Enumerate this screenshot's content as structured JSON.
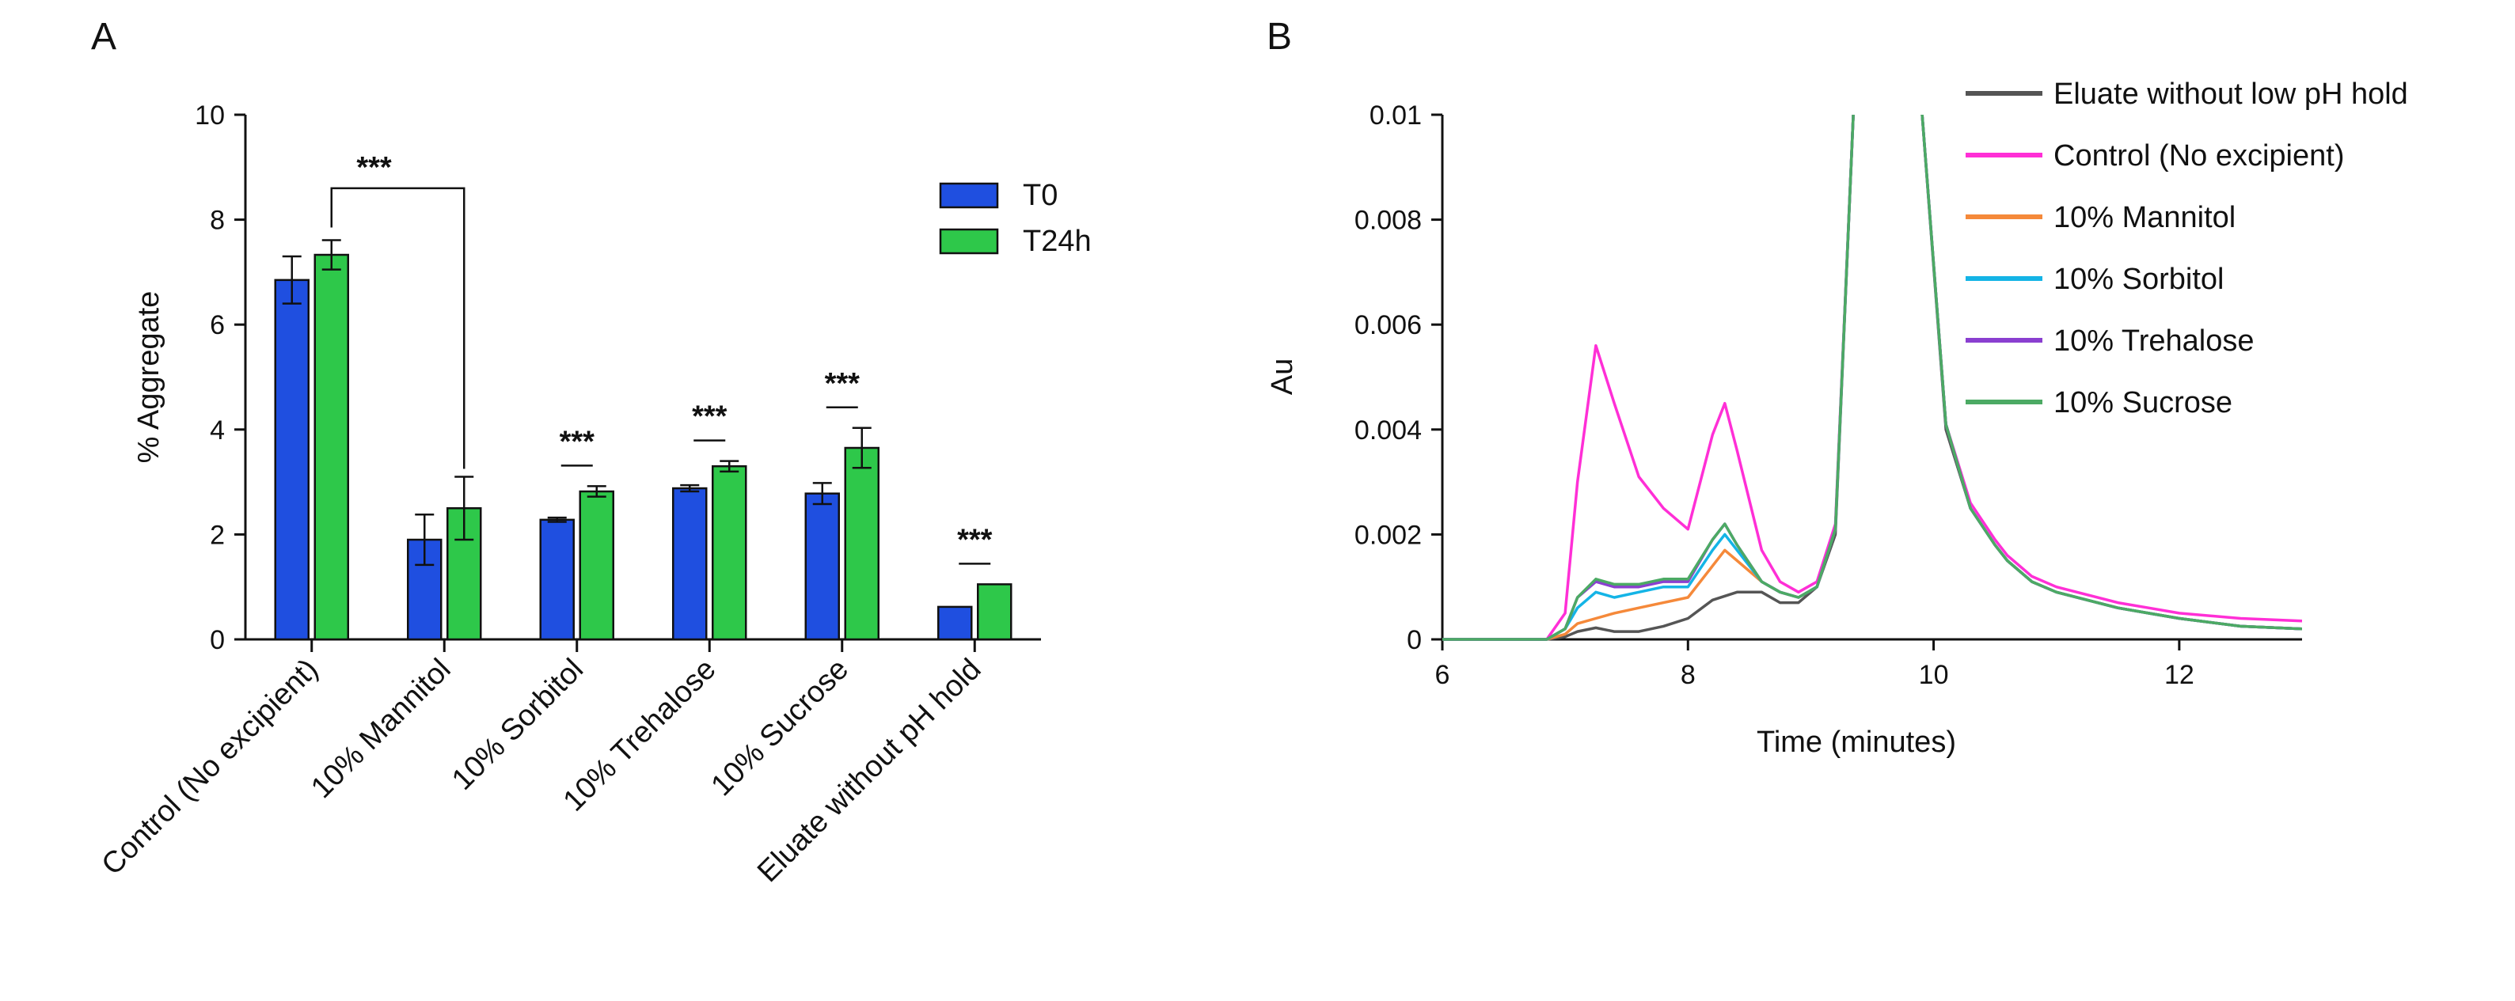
{
  "panels": {
    "a": {
      "label": "A"
    },
    "b": {
      "label": "B"
    }
  },
  "chart_data": [
    {
      "type": "bar",
      "panel": "A",
      "title": "",
      "xlabel": "",
      "ylabel": "%  Aggregate",
      "ylim": [
        0,
        10
      ],
      "yticks": [
        "0",
        "2",
        "4",
        "6",
        "8",
        "10"
      ],
      "categories": [
        "Control (No excipient)",
        "10% Mannitol",
        "10% Sorbitol",
        "10% Trehalose",
        "10% Sucrose",
        "Eluate without pH hold"
      ],
      "legend_position": "top-right",
      "series": [
        {
          "name": "T0",
          "color": "#1f4fe0",
          "values": [
            6.85,
            1.9,
            2.28,
            2.88,
            2.78,
            0.62
          ],
          "errors": [
            0.45,
            0.48,
            0.04,
            0.06,
            0.2,
            0.0
          ]
        },
        {
          "name": "T24h",
          "color": "#2ec84a",
          "values": [
            7.33,
            2.5,
            2.82,
            3.3,
            3.65,
            1.05
          ],
          "errors": [
            0.28,
            0.6,
            0.1,
            0.1,
            0.38,
            0.0
          ]
        }
      ],
      "annotations": [
        {
          "text": "***",
          "type": "bracket",
          "from_category": 0,
          "to_category": 1
        },
        {
          "text": "***",
          "type": "bar",
          "category": 2
        },
        {
          "text": "***",
          "type": "bar",
          "category": 3
        },
        {
          "text": "***",
          "type": "bar",
          "category": 4
        },
        {
          "text": "***",
          "type": "bar",
          "category": 5
        }
      ],
      "grid": false
    },
    {
      "type": "line",
      "panel": "B",
      "title": "",
      "xlabel": "Time (minutes)",
      "ylabel": "Au",
      "xlim": [
        6,
        13
      ],
      "ylim": [
        0,
        0.01
      ],
      "xticks": [
        "6",
        "8",
        "10",
        "12"
      ],
      "yticks": [
        "0",
        "0.002",
        "0.004",
        "0.006",
        "0.008",
        "0.01"
      ],
      "legend_position": "top-right",
      "grid": false,
      "series": [
        {
          "name": "Eluate without low pH hold",
          "color": "#555555",
          "x": [
            6,
            6.6,
            6.85,
            7,
            7.1,
            7.25,
            7.4,
            7.6,
            7.8,
            8.0,
            8.2,
            8.4,
            8.6,
            8.75,
            8.9,
            9.05,
            9.2,
            9.35,
            9.9,
            10.1,
            10.3,
            10.5,
            10.6,
            10.8,
            11,
            11.5,
            11.75,
            12,
            12.5,
            13
          ],
          "y": [
            0,
            0,
            0,
            5e-05,
            0.00015,
            0.00022,
            0.00015,
            0.00015,
            0.00025,
            0.0004,
            0.00075,
            0.0009,
            0.0009,
            0.0007,
            0.0007,
            0.001,
            0.002,
            0.0102,
            0.0102,
            0.004,
            0.0025,
            0.0018,
            0.0015,
            0.0011,
            0.0009,
            0.0006,
            0.0005,
            0.0004,
            0.00025,
            0.0002
          ]
        },
        {
          "name": "Control (No excipient)",
          "color": "#ff2fd6",
          "x": [
            6,
            6.6,
            6.85,
            7,
            7.1,
            7.25,
            7.4,
            7.6,
            7.8,
            8.0,
            8.2,
            8.3,
            8.4,
            8.6,
            8.75,
            8.9,
            9.05,
            9.2,
            9.35,
            9.9,
            10.1,
            10.3,
            10.5,
            10.6,
            10.8,
            11,
            11.5,
            11.75,
            12,
            12.5,
            13
          ],
          "y": [
            0,
            0,
            0,
            0.0005,
            0.003,
            0.0056,
            0.0045,
            0.0031,
            0.0025,
            0.0021,
            0.0039,
            0.0045,
            0.0036,
            0.0017,
            0.0011,
            0.0009,
            0.0011,
            0.0022,
            0.0102,
            0.0102,
            0.0041,
            0.0026,
            0.0019,
            0.0016,
            0.0012,
            0.001,
            0.0007,
            0.0006,
            0.0005,
            0.0004,
            0.00035
          ]
        },
        {
          "name": "10% Mannitol",
          "color": "#f5893a",
          "x": [
            6,
            6.6,
            6.85,
            7,
            7.1,
            7.25,
            7.4,
            7.6,
            7.8,
            8.0,
            8.2,
            8.3,
            8.4,
            8.6,
            8.75,
            8.9,
            9.05,
            9.2,
            9.35,
            9.9,
            10.1,
            10.3,
            10.5,
            10.6,
            10.8,
            11,
            11.5,
            11.75,
            12,
            12.5,
            13
          ],
          "y": [
            0,
            0,
            0,
            0.0001,
            0.0003,
            0.0004,
            0.0005,
            0.0006,
            0.0007,
            0.0008,
            0.0014,
            0.0017,
            0.0015,
            0.0011,
            0.0009,
            0.0008,
            0.001,
            0.0021,
            0.0102,
            0.0102,
            0.0041,
            0.0025,
            0.0018,
            0.0015,
            0.0011,
            0.0009,
            0.0006,
            0.0005,
            0.0004,
            0.00025,
            0.0002
          ]
        },
        {
          "name": "10% Sorbitol",
          "color": "#14b4e6",
          "x": [
            6,
            6.6,
            6.85,
            7,
            7.1,
            7.25,
            7.4,
            7.6,
            7.8,
            8.0,
            8.2,
            8.3,
            8.4,
            8.6,
            8.75,
            8.9,
            9.05,
            9.2,
            9.35,
            9.9,
            10.1,
            10.3,
            10.5,
            10.6,
            10.8,
            11,
            11.5,
            11.75,
            12,
            12.5,
            13
          ],
          "y": [
            0,
            0,
            0,
            0.0002,
            0.0006,
            0.0009,
            0.0008,
            0.0009,
            0.001,
            0.001,
            0.0017,
            0.002,
            0.0017,
            0.0011,
            0.0009,
            0.0008,
            0.001,
            0.0021,
            0.0102,
            0.0102,
            0.0041,
            0.0025,
            0.0018,
            0.0015,
            0.0011,
            0.0009,
            0.0006,
            0.0005,
            0.0004,
            0.00025,
            0.0002
          ]
        },
        {
          "name": "10% Trehalose",
          "color": "#8a3fd0",
          "x": [
            6,
            6.6,
            6.85,
            7,
            7.1,
            7.25,
            7.4,
            7.6,
            7.8,
            8.0,
            8.2,
            8.3,
            8.4,
            8.6,
            8.75,
            8.9,
            9.05,
            9.2,
            9.35,
            9.9,
            10.1,
            10.3,
            10.5,
            10.6,
            10.8,
            11,
            11.5,
            11.75,
            12,
            12.5,
            13
          ],
          "y": [
            0,
            0,
            0,
            0.0002,
            0.0008,
            0.0011,
            0.001,
            0.001,
            0.0011,
            0.0011,
            0.0019,
            0.0022,
            0.0018,
            0.0011,
            0.0009,
            0.0008,
            0.001,
            0.0021,
            0.0102,
            0.0102,
            0.0041,
            0.0025,
            0.0018,
            0.0015,
            0.0011,
            0.0009,
            0.0006,
            0.0005,
            0.0004,
            0.00025,
            0.0002
          ]
        },
        {
          "name": "10% Sucrose",
          "color": "#4caa64",
          "x": [
            6,
            6.6,
            6.85,
            7,
            7.1,
            7.25,
            7.4,
            7.6,
            7.8,
            8.0,
            8.2,
            8.3,
            8.4,
            8.6,
            8.75,
            8.9,
            9.05,
            9.2,
            9.35,
            9.9,
            10.1,
            10.3,
            10.5,
            10.6,
            10.8,
            11,
            11.5,
            11.75,
            12,
            12.5,
            13
          ],
          "y": [
            0,
            0,
            0,
            0.0002,
            0.0008,
            0.00115,
            0.00105,
            0.00105,
            0.00115,
            0.00115,
            0.0019,
            0.0022,
            0.0018,
            0.0011,
            0.0009,
            0.0008,
            0.001,
            0.0021,
            0.0102,
            0.0102,
            0.0041,
            0.0025,
            0.0018,
            0.0015,
            0.0011,
            0.0009,
            0.0006,
            0.0005,
            0.0004,
            0.00025,
            0.0002
          ]
        }
      ]
    }
  ]
}
